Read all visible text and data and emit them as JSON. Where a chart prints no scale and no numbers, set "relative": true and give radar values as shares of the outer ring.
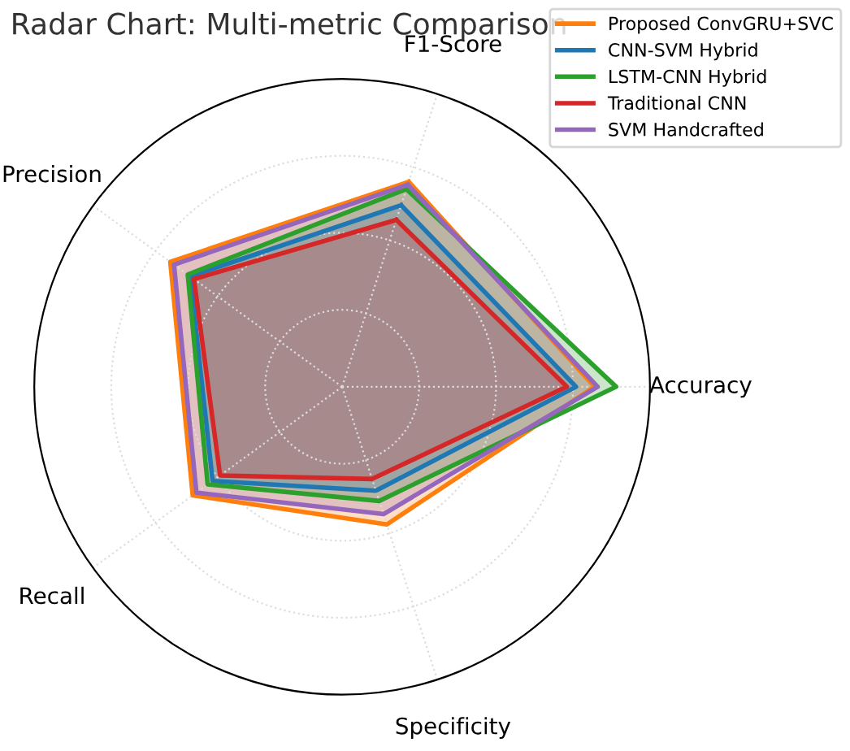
{
  "chart_data": {
    "type": "radar",
    "title": "Radar Chart: Multi-metric Comparison",
    "relative": true,
    "grid": true,
    "legend": "top right",
    "categories": [
      "F1-Score",
      "Accuracy",
      "Specificity",
      "Recall",
      "Precision"
    ],
    "series": [
      {
        "name": "Proposed ConvGRU+SVC",
        "color": "#ff7f0e",
        "values": [
          0.7,
          0.82,
          0.47,
          0.6,
          0.69
        ]
      },
      {
        "name": "CNN-SVM Hybrid",
        "color": "#1f77b4",
        "values": [
          0.62,
          0.76,
          0.355,
          0.52,
          0.61
        ]
      },
      {
        "name": "LSTM-CNN Hybrid",
        "color": "#2ca02c",
        "values": [
          0.675,
          0.89,
          0.39,
          0.54,
          0.62
        ]
      },
      {
        "name": "Traditional CNN",
        "color": "#d62728",
        "values": [
          0.57,
          0.73,
          0.315,
          0.49,
          0.595
        ]
      },
      {
        "name": "SVM Handcrafted",
        "color": "#9467bd",
        "values": [
          0.69,
          0.83,
          0.435,
          0.585,
          0.675
        ]
      }
    ]
  }
}
